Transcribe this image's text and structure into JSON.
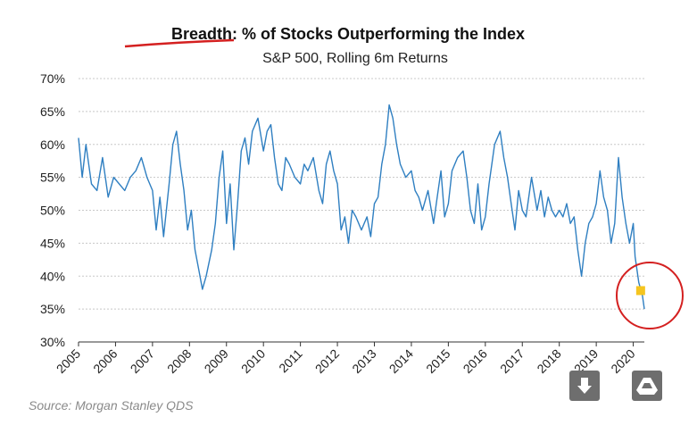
{
  "chart_data": {
    "type": "line",
    "title": "Breadth: % of Stocks Outperforming the Index",
    "title_prefix": "Breadth: %",
    "title_rest": " of Stocks Outperforming the Index",
    "subtitle": "S&P 500, Rolling 6m Returns",
    "source": "Source: Morgan Stanley QDS",
    "ylim": [
      30,
      70
    ],
    "yticks": [
      "30%",
      "35%",
      "40%",
      "45%",
      "50%",
      "55%",
      "60%",
      "65%",
      "70%"
    ],
    "xlim": [
      2005,
      2020.3
    ],
    "xticks": [
      "2005",
      "2006",
      "2007",
      "2008",
      "2009",
      "2010",
      "2011",
      "2012",
      "2013",
      "2014",
      "2015",
      "2016",
      "2017",
      "2018",
      "2019",
      "2020"
    ],
    "grid": "horizontal dotted",
    "line_color": "#2f7fc1",
    "highlight_color": "#f5c51f",
    "annotation_color": "#d42020",
    "series": [
      {
        "x": [
          2005.0,
          2005.1,
          2005.2,
          2005.35,
          2005.5,
          2005.65,
          2005.8,
          2005.95,
          2006.1,
          2006.25,
          2006.4,
          2006.55,
          2006.7,
          2006.85,
          2007.0,
          2007.1,
          2007.2,
          2007.3,
          2007.45,
          2007.55,
          2007.65,
          2007.75,
          2007.85,
          2007.95,
          2008.05,
          2008.15,
          2008.25,
          2008.35,
          2008.45,
          2008.6,
          2008.7,
          2008.8,
          2008.9,
          2009.0,
          2009.1,
          2009.2,
          2009.3,
          2009.4,
          2009.5,
          2009.6,
          2009.7,
          2009.85,
          2010.0,
          2010.1,
          2010.2,
          2010.3,
          2010.4,
          2010.5,
          2010.6,
          2010.7,
          2010.85,
          2011.0,
          2011.1,
          2011.2,
          2011.35,
          2011.5,
          2011.6,
          2011.7,
          2011.8,
          2011.9,
          2012.0,
          2012.1,
          2012.2,
          2012.3,
          2012.4,
          2012.5,
          2012.65,
          2012.8,
          2012.9,
          2013.0,
          2013.1,
          2013.2,
          2013.3,
          2013.4,
          2013.5,
          2013.6,
          2013.7,
          2013.85,
          2014.0,
          2014.1,
          2014.2,
          2014.3,
          2014.45,
          2014.6,
          2014.7,
          2014.8,
          2014.9,
          2015.0,
          2015.1,
          2015.25,
          2015.4,
          2015.5,
          2015.6,
          2015.7,
          2015.8,
          2015.9,
          2016.0,
          2016.1,
          2016.25,
          2016.4,
          2016.5,
          2016.6,
          2016.7,
          2016.8,
          2016.9,
          2017.0,
          2017.1,
          2017.25,
          2017.4,
          2017.5,
          2017.6,
          2017.7,
          2017.8,
          2017.9,
          2018.0,
          2018.1,
          2018.2,
          2018.3,
          2018.4,
          2018.5,
          2018.6,
          2018.7,
          2018.8,
          2018.9,
          2019.0,
          2019.1,
          2019.2,
          2019.3,
          2019.4,
          2019.5,
          2019.6,
          2019.7,
          2019.8,
          2019.9,
          2020.0,
          2020.05,
          2020.1,
          2020.15,
          2020.2,
          2020.25,
          2020.3
        ],
        "values": [
          61,
          55,
          60,
          54,
          53,
          58,
          52,
          55,
          54,
          53,
          55,
          56,
          58,
          55,
          53,
          47,
          52,
          46,
          54,
          60,
          62,
          57,
          53,
          47,
          50,
          44,
          41,
          38,
          40,
          44,
          48,
          55,
          59,
          48,
          54,
          44,
          51,
          59,
          61,
          57,
          62,
          64,
          59,
          62,
          63,
          58,
          54,
          53,
          58,
          57,
          55,
          54,
          57,
          56,
          58,
          53,
          51,
          57,
          59,
          56,
          54,
          47,
          49,
          45,
          50,
          49,
          47,
          49,
          46,
          51,
          52,
          57,
          60,
          66,
          64,
          60,
          57,
          55,
          56,
          53,
          52,
          50,
          53,
          48,
          52,
          56,
          49,
          51,
          56,
          58,
          59,
          55,
          50,
          48,
          54,
          47,
          49,
          54,
          60,
          62,
          58,
          55,
          51,
          47,
          53,
          50,
          49,
          55,
          50,
          53,
          49,
          52,
          50,
          49,
          50,
          49,
          51,
          48,
          49,
          44,
          40,
          45,
          48,
          49,
          51,
          56,
          52,
          50,
          45,
          48,
          58,
          52,
          48,
          45,
          48,
          43,
          41,
          39,
          38,
          37,
          35
        ]
      }
    ],
    "highlight_point": {
      "x": 2020.2,
      "y": 37.8
    }
  }
}
